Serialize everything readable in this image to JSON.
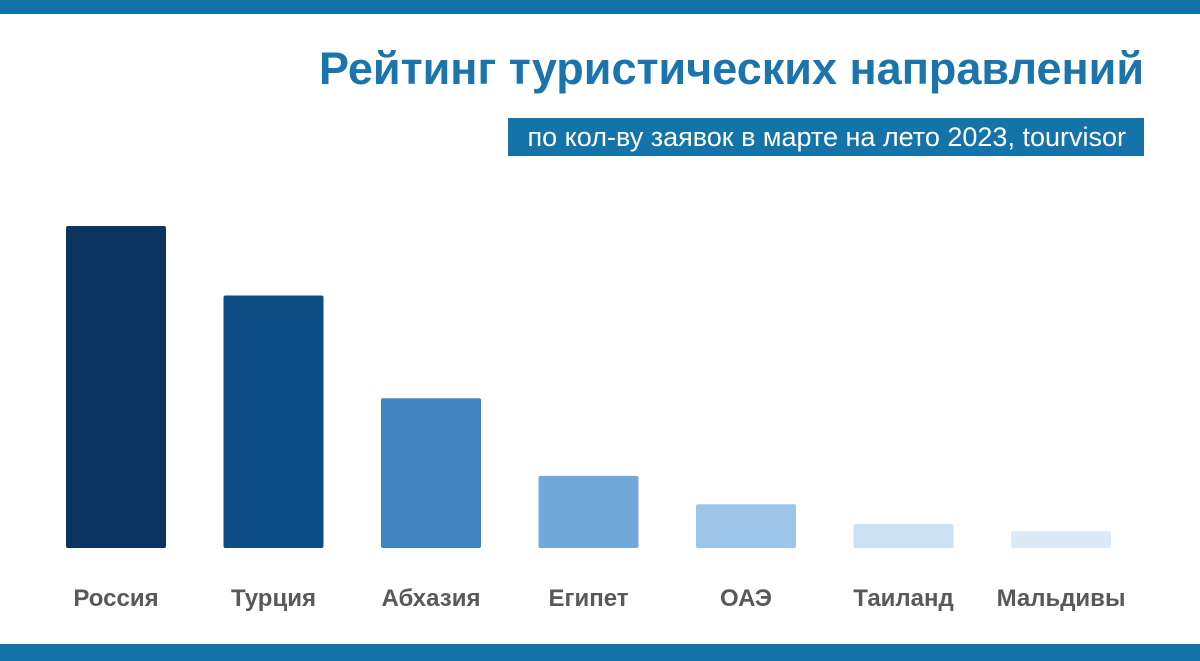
{
  "header": {
    "title": "Рейтинг туристических направлений",
    "subtitle": "по кол-ву заявок в марте на лето 2023, tourvisor"
  },
  "colors": {
    "frame": "#1473A8",
    "title": "#1C74AD",
    "subtitle_bg": "#1473A8",
    "label": "#595959",
    "bars": [
      "#0B3560",
      "#0E4C86",
      "#4085C2",
      "#73A9DA",
      "#9DC5E8",
      "#CBE0F3",
      "#DCEAF7"
    ]
  },
  "chart_data": {
    "type": "bar",
    "categories": [
      "Россия",
      "Турция",
      "Абхазия",
      "Египет",
      "ОАЭ",
      "Таиланд",
      "Мальдивы"
    ],
    "values": [
      100,
      78.4,
      46.5,
      22.4,
      13.6,
      7.4,
      5.2
    ],
    "ylim": [
      0,
      100
    ],
    "grid": false,
    "legend": "none"
  }
}
